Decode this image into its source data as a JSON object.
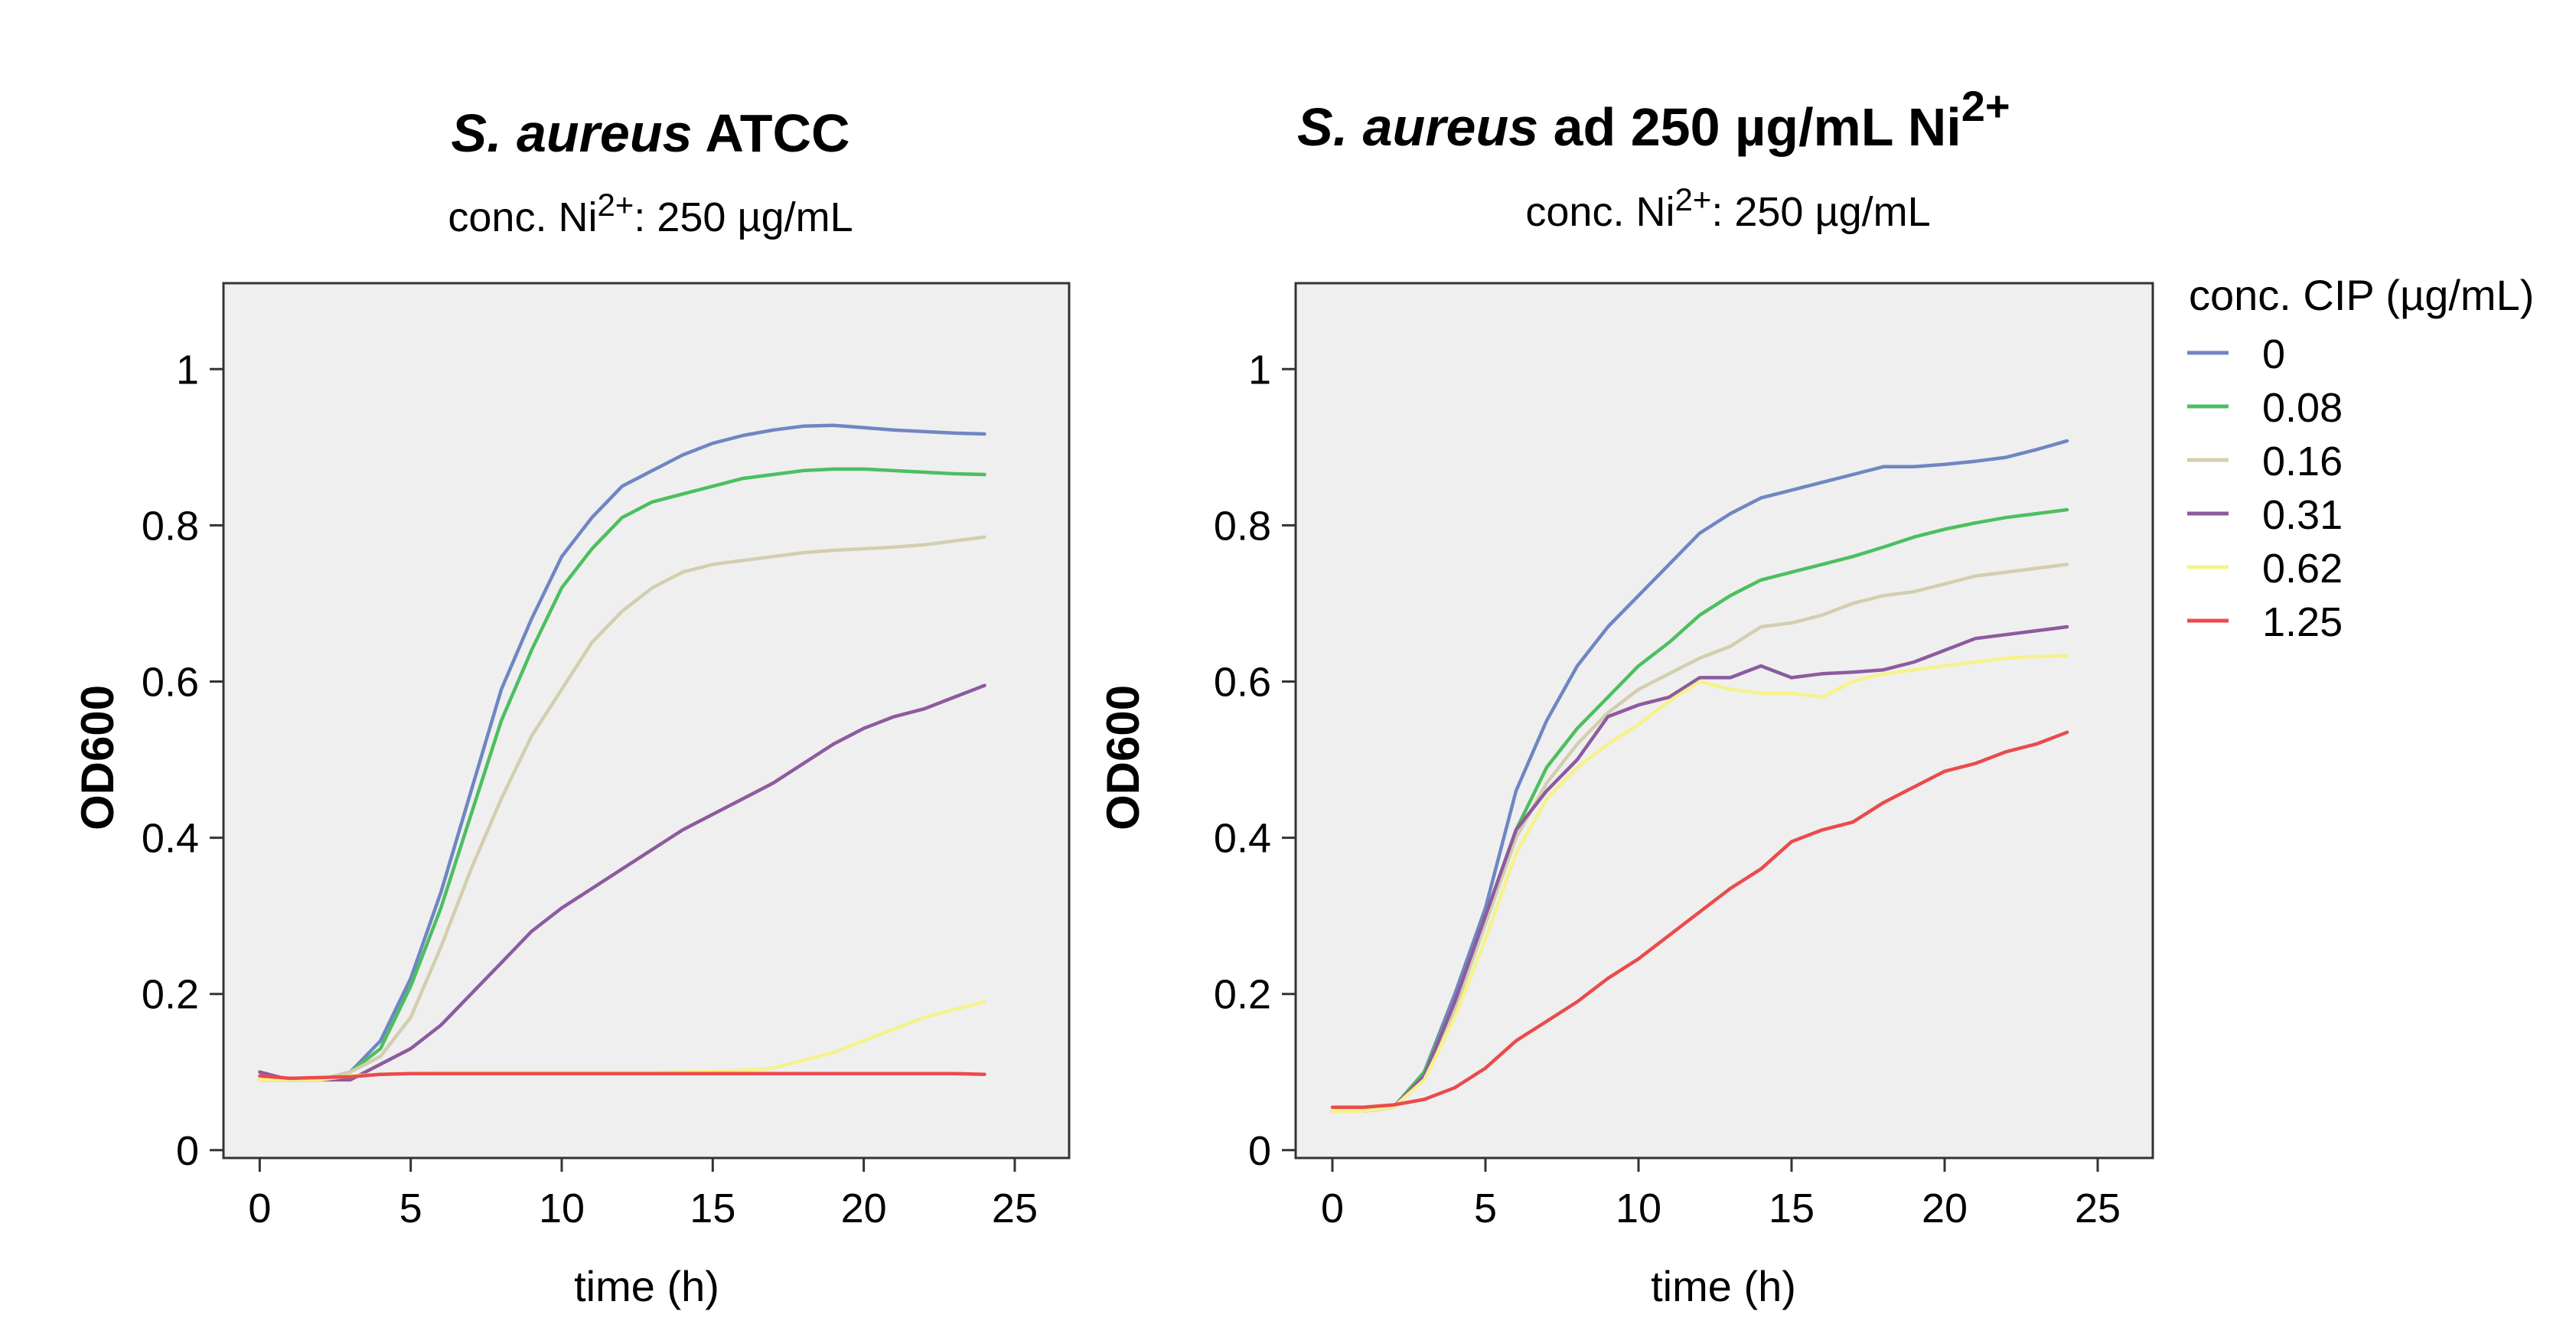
{
  "chart_data": [
    {
      "type": "line",
      "title": {
        "italic": "S. aureus",
        "rest": "ATCC"
      },
      "subtitle": {
        "prefix": "conc. Ni",
        "sup": "2+",
        "suffix": ": 250 µg/mL"
      },
      "xlabel": "time (h)",
      "ylabel": "OD600",
      "xlim": [
        -1.2,
        26.8
      ],
      "ylim": [
        -0.01,
        1.11
      ],
      "xticks": [
        0,
        5,
        10,
        15,
        20,
        25
      ],
      "xtick_labels": [
        "0",
        "5",
        "10",
        "15",
        "20",
        "25"
      ],
      "yticks": [
        0,
        0.2,
        0.4,
        0.6,
        0.8,
        1
      ],
      "ytick_labels": [
        "0",
        "0.2",
        "0.4",
        "0.6",
        "0.8",
        "1"
      ],
      "background": "#efefef",
      "x": [
        0,
        1,
        2,
        3,
        4,
        5,
        6,
        7,
        8,
        9,
        10,
        11,
        12,
        13,
        14,
        15,
        16,
        17,
        18,
        19,
        20,
        21,
        22,
        23,
        24
      ],
      "series": [
        {
          "name": "0",
          "color": "#6f86c2",
          "values": [
            0.09,
            0.09,
            0.09,
            0.1,
            0.14,
            0.22,
            0.33,
            0.46,
            0.59,
            0.68,
            0.76,
            0.81,
            0.85,
            0.87,
            0.89,
            0.905,
            0.915,
            0.922,
            0.927,
            0.928,
            0.925,
            0.922,
            0.92,
            0.918,
            0.917
          ]
        },
        {
          "name": "0.08",
          "color": "#4cbf60",
          "values": [
            0.09,
            0.09,
            0.09,
            0.1,
            0.13,
            0.21,
            0.31,
            0.43,
            0.55,
            0.64,
            0.72,
            0.77,
            0.81,
            0.83,
            0.84,
            0.85,
            0.86,
            0.865,
            0.87,
            0.872,
            0.872,
            0.87,
            0.868,
            0.866,
            0.865
          ]
        },
        {
          "name": "0.16",
          "color": "#d3ceae",
          "values": [
            0.09,
            0.09,
            0.09,
            0.1,
            0.12,
            0.17,
            0.26,
            0.36,
            0.45,
            0.53,
            0.59,
            0.65,
            0.69,
            0.72,
            0.74,
            0.75,
            0.755,
            0.76,
            0.765,
            0.768,
            0.77,
            0.772,
            0.775,
            0.78,
            0.785
          ]
        },
        {
          "name": "0.31",
          "color": "#8d5a9f",
          "values": [
            0.1,
            0.09,
            0.09,
            0.09,
            0.11,
            0.13,
            0.16,
            0.2,
            0.24,
            0.28,
            0.31,
            0.335,
            0.36,
            0.385,
            0.41,
            0.43,
            0.45,
            0.47,
            0.495,
            0.52,
            0.54,
            0.555,
            0.565,
            0.58,
            0.595
          ]
        },
        {
          "name": "0.62",
          "color": "#f6f28a",
          "values": [
            0.09,
            0.09,
            0.09,
            0.095,
            0.097,
            0.098,
            0.099,
            0.099,
            0.099,
            0.099,
            0.099,
            0.099,
            0.099,
            0.099,
            0.1,
            0.101,
            0.102,
            0.105,
            0.115,
            0.125,
            0.14,
            0.155,
            0.17,
            0.18,
            0.19
          ]
        },
        {
          "name": "1.25",
          "color": "#ea4b4b",
          "values": [
            0.095,
            0.092,
            0.093,
            0.094,
            0.097,
            0.098,
            0.098,
            0.098,
            0.098,
            0.098,
            0.098,
            0.098,
            0.098,
            0.098,
            0.098,
            0.098,
            0.098,
            0.098,
            0.098,
            0.098,
            0.098,
            0.098,
            0.098,
            0.098,
            0.097
          ]
        }
      ]
    },
    {
      "type": "line",
      "title": {
        "italic": "S. aureus",
        "rest": "ad  250 µg/mL Ni",
        "sup": "2+"
      },
      "subtitle": {
        "prefix": "conc. Ni",
        "sup": "2+",
        "suffix": ": 250 µg/mL"
      },
      "xlabel": "time (h)",
      "ylabel": "OD600",
      "xlim": [
        -1.2,
        26.8
      ],
      "ylim": [
        -0.01,
        1.11
      ],
      "xticks": [
        0,
        5,
        10,
        15,
        20,
        25
      ],
      "xtick_labels": [
        "0",
        "5",
        "10",
        "15",
        "20",
        "25"
      ],
      "yticks": [
        0,
        0.2,
        0.4,
        0.6,
        0.8,
        1
      ],
      "ytick_labels": [
        "0",
        "0.2",
        "0.4",
        "0.6",
        "0.8",
        "1"
      ],
      "background": "#efefef",
      "legend": {
        "title": "conc. CIP (µg/mL)",
        "position": "right"
      },
      "x": [
        0,
        1,
        2,
        3,
        4,
        5,
        6,
        7,
        8,
        9,
        10,
        11,
        12,
        13,
        14,
        15,
        16,
        17,
        18,
        19,
        20,
        21,
        22,
        23,
        24
      ],
      "series": [
        {
          "name": "0",
          "color": "#6f86c2",
          "values": [
            0.05,
            0.05,
            0.055,
            0.1,
            0.2,
            0.31,
            0.46,
            0.55,
            0.62,
            0.67,
            0.71,
            0.75,
            0.79,
            0.815,
            0.835,
            0.845,
            0.855,
            0.865,
            0.875,
            0.875,
            0.878,
            0.882,
            0.887,
            0.897,
            0.908
          ]
        },
        {
          "name": "0.08",
          "color": "#4cbf60",
          "values": [
            0.05,
            0.05,
            0.055,
            0.1,
            0.19,
            0.3,
            0.41,
            0.49,
            0.54,
            0.58,
            0.62,
            0.65,
            0.685,
            0.71,
            0.73,
            0.74,
            0.75,
            0.76,
            0.772,
            0.785,
            0.795,
            0.803,
            0.81,
            0.815,
            0.82
          ]
        },
        {
          "name": "0.16",
          "color": "#d3ceae",
          "values": [
            0.05,
            0.05,
            0.055,
            0.095,
            0.18,
            0.29,
            0.4,
            0.47,
            0.52,
            0.56,
            0.59,
            0.61,
            0.63,
            0.645,
            0.67,
            0.675,
            0.685,
            0.7,
            0.71,
            0.715,
            0.725,
            0.735,
            0.74,
            0.745,
            0.75
          ]
        },
        {
          "name": "0.31",
          "color": "#8d5a9f",
          "values": [
            0.05,
            0.05,
            0.055,
            0.095,
            0.19,
            0.3,
            0.41,
            0.46,
            0.5,
            0.555,
            0.57,
            0.58,
            0.605,
            0.605,
            0.62,
            0.605,
            0.61,
            0.612,
            0.615,
            0.625,
            0.64,
            0.655,
            0.66,
            0.665,
            0.67
          ]
        },
        {
          "name": "0.62",
          "color": "#f6f28a",
          "values": [
            0.05,
            0.05,
            0.055,
            0.09,
            0.17,
            0.27,
            0.38,
            0.45,
            0.49,
            0.52,
            0.545,
            0.575,
            0.6,
            0.59,
            0.585,
            0.585,
            0.58,
            0.6,
            0.61,
            0.615,
            0.62,
            0.625,
            0.63,
            0.632,
            0.633
          ]
        },
        {
          "name": "1.25",
          "color": "#ea4b4b",
          "values": [
            0.055,
            0.055,
            0.058,
            0.065,
            0.08,
            0.105,
            0.14,
            0.165,
            0.19,
            0.22,
            0.245,
            0.275,
            0.305,
            0.335,
            0.36,
            0.395,
            0.41,
            0.42,
            0.445,
            0.465,
            0.485,
            0.495,
            0.51,
            0.52,
            0.535
          ]
        }
      ]
    }
  ]
}
